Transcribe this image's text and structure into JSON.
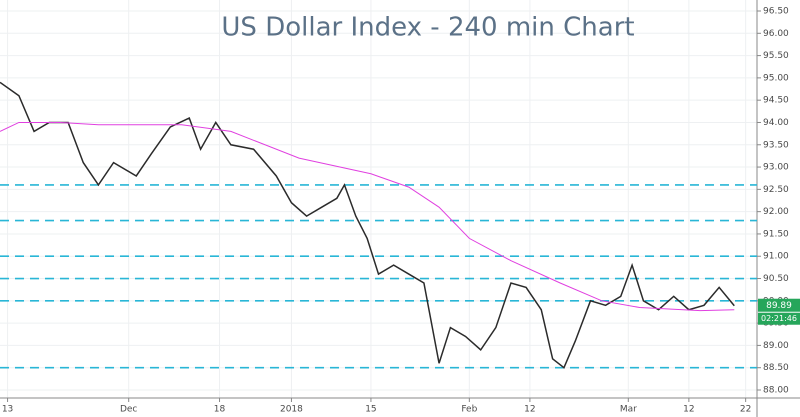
{
  "chart_data": {
    "type": "line",
    "title": "US Dollar Index - 240 min Chart",
    "xlim": [
      0,
      200
    ],
    "ylim": [
      88,
      96.5
    ],
    "xticks": [
      {
        "value": 2,
        "label": "13"
      },
      {
        "value": 34,
        "label": "Dec"
      },
      {
        "value": 58,
        "label": "18"
      },
      {
        "value": 77,
        "label": "2018"
      },
      {
        "value": 98,
        "label": "15"
      },
      {
        "value": 124,
        "label": "Feb"
      },
      {
        "value": 140,
        "label": "12"
      },
      {
        "value": 166,
        "label": "Mar"
      },
      {
        "value": 182,
        "label": "12"
      },
      {
        "value": 197,
        "label": "22"
      }
    ],
    "yticks": [
      {
        "value": 88,
        "label": "88.00"
      },
      {
        "value": 88.5,
        "label": "88.50"
      },
      {
        "value": 89,
        "label": "89.00"
      },
      {
        "value": 89.5,
        "label": "89.50"
      },
      {
        "value": 90,
        "label": "90.00"
      },
      {
        "value": 90.5,
        "label": "90.50"
      },
      {
        "value": 91,
        "label": "91.00"
      },
      {
        "value": 91.5,
        "label": "91.50"
      },
      {
        "value": 92,
        "label": "92.00"
      },
      {
        "value": 92.5,
        "label": "92.50"
      },
      {
        "value": 93,
        "label": "93.00"
      },
      {
        "value": 93.5,
        "label": "93.50"
      },
      {
        "value": 94,
        "label": "94.00"
      },
      {
        "value": 94.5,
        "label": "94.50"
      },
      {
        "value": 95,
        "label": "95.00"
      },
      {
        "value": 95.5,
        "label": "95.50"
      },
      {
        "value": 96,
        "label": "96.00"
      },
      {
        "value": 96.5,
        "label": "96.50"
      }
    ],
    "grid": true,
    "series": [
      {
        "color": "#2b2b2b",
        "x": [
          0,
          5,
          9,
          13,
          18,
          22,
          26,
          30,
          36,
          40,
          45,
          50,
          53,
          57,
          61,
          67,
          73,
          77,
          81,
          85,
          89,
          91,
          94,
          97,
          100,
          104,
          108,
          112,
          116,
          119,
          123,
          127,
          131,
          135,
          139,
          143,
          146,
          149,
          152,
          156,
          160,
          164,
          167,
          170,
          174,
          178,
          182,
          186,
          190,
          194
        ],
        "values": [
          94.9,
          94.6,
          93.8,
          94.0,
          94.0,
          93.1,
          92.6,
          93.1,
          92.8,
          93.3,
          93.9,
          94.1,
          93.4,
          94.0,
          93.5,
          93.4,
          92.8,
          92.2,
          91.9,
          92.1,
          92.3,
          92.6,
          91.9,
          91.4,
          90.6,
          90.8,
          90.6,
          90.4,
          88.6,
          89.4,
          89.2,
          88.9,
          89.4,
          90.4,
          90.3,
          89.8,
          88.7,
          88.5,
          89.1,
          90.0,
          89.9,
          90.1,
          90.8,
          90.0,
          89.8,
          90.1,
          89.8,
          89.9,
          90.3,
          89.89
        ]
      },
      {
        "color": "#e040e0",
        "x": [
          0,
          5,
          16,
          26,
          48,
          61,
          79,
          98,
          108,
          116,
          124,
          135,
          148,
          159,
          169,
          185,
          194
        ],
        "values": [
          93.8,
          94.0,
          94.0,
          93.95,
          93.95,
          93.8,
          93.2,
          92.85,
          92.55,
          92.1,
          91.4,
          90.9,
          90.4,
          90.0,
          89.85,
          89.78,
          89.8
        ]
      }
    ],
    "levels": [
      92.6,
      91.8,
      91.0,
      90.5,
      90.0,
      88.5
    ],
    "level_color": "#29b6d6",
    "last_price": 89.89,
    "countdown": "02:21:46"
  }
}
